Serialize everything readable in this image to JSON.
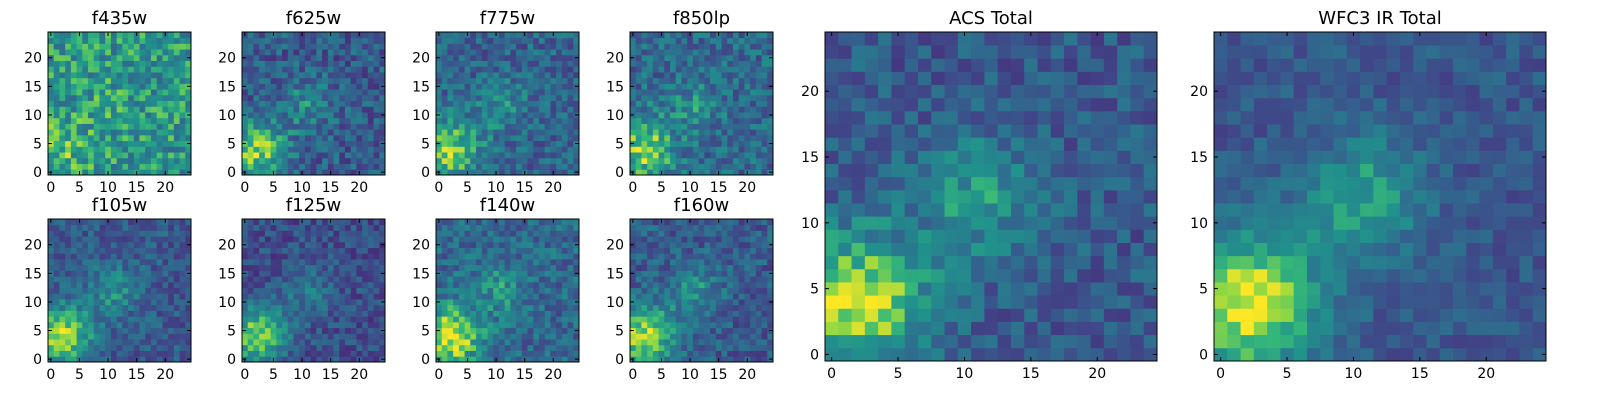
{
  "chart_data": {
    "type": "heatmap",
    "colormap": "viridis",
    "grid": false,
    "panels": [
      {
        "title": "f435w",
        "size": 25,
        "xticks": [
          0,
          5,
          10,
          15,
          20
        ],
        "yticks": [
          0,
          5,
          10,
          15,
          20
        ],
        "seed": 11,
        "noise": 0.42,
        "base": 0.62,
        "blob": 0.15,
        "mid": 0.05
      },
      {
        "title": "f625w",
        "size": 25,
        "xticks": [
          0,
          5,
          10,
          15,
          20
        ],
        "yticks": [
          0,
          5,
          10,
          15,
          20
        ],
        "seed": 23,
        "noise": 0.38,
        "base": 0.36,
        "blob": 0.5,
        "mid": 0.22
      },
      {
        "title": "f775w",
        "size": 25,
        "xticks": [
          0,
          5,
          10,
          15,
          20
        ],
        "yticks": [
          0,
          5,
          10,
          15,
          20
        ],
        "seed": 37,
        "noise": 0.36,
        "base": 0.4,
        "blob": 0.45,
        "mid": 0.18
      },
      {
        "title": "f850lp",
        "size": 25,
        "xticks": [
          0,
          5,
          10,
          15,
          20
        ],
        "yticks": [
          0,
          5,
          10,
          15,
          20
        ],
        "seed": 41,
        "noise": 0.38,
        "base": 0.42,
        "blob": 0.45,
        "mid": 0.18
      },
      {
        "title": "f105w",
        "size": 25,
        "xticks": [
          0,
          5,
          10,
          15,
          20
        ],
        "yticks": [
          0,
          5,
          10,
          15,
          20
        ],
        "seed": 53,
        "noise": 0.3,
        "base": 0.35,
        "blob": 0.55,
        "mid": 0.25
      },
      {
        "title": "f125w",
        "size": 25,
        "xticks": [
          0,
          5,
          10,
          15,
          20
        ],
        "yticks": [
          0,
          5,
          10,
          15,
          20
        ],
        "seed": 67,
        "noise": 0.3,
        "base": 0.3,
        "blob": 0.55,
        "mid": 0.2
      },
      {
        "title": "f140w",
        "size": 25,
        "xticks": [
          0,
          5,
          10,
          15,
          20
        ],
        "yticks": [
          0,
          5,
          10,
          15,
          20
        ],
        "seed": 71,
        "noise": 0.35,
        "base": 0.42,
        "blob": 0.55,
        "mid": 0.2
      },
      {
        "title": "f160w",
        "size": 25,
        "xticks": [
          0,
          5,
          10,
          15,
          20
        ],
        "yticks": [
          0,
          5,
          10,
          15,
          20
        ],
        "seed": 83,
        "noise": 0.32,
        "base": 0.36,
        "blob": 0.55,
        "mid": 0.25
      },
      {
        "title": "ACS Total",
        "size": 25,
        "xticks": [
          0,
          5,
          10,
          15,
          20
        ],
        "yticks": [
          0,
          5,
          10,
          15,
          20
        ],
        "seed": 97,
        "noise": 0.3,
        "base": 0.35,
        "blob": 0.6,
        "mid": 0.3
      },
      {
        "title": "WFC3 IR Total",
        "size": 25,
        "xticks": [
          0,
          5,
          10,
          15,
          20
        ],
        "yticks": [
          0,
          5,
          10,
          15,
          20
        ],
        "seed": 101,
        "noise": 0.22,
        "base": 0.34,
        "blob": 0.65,
        "mid": 0.35
      }
    ]
  }
}
